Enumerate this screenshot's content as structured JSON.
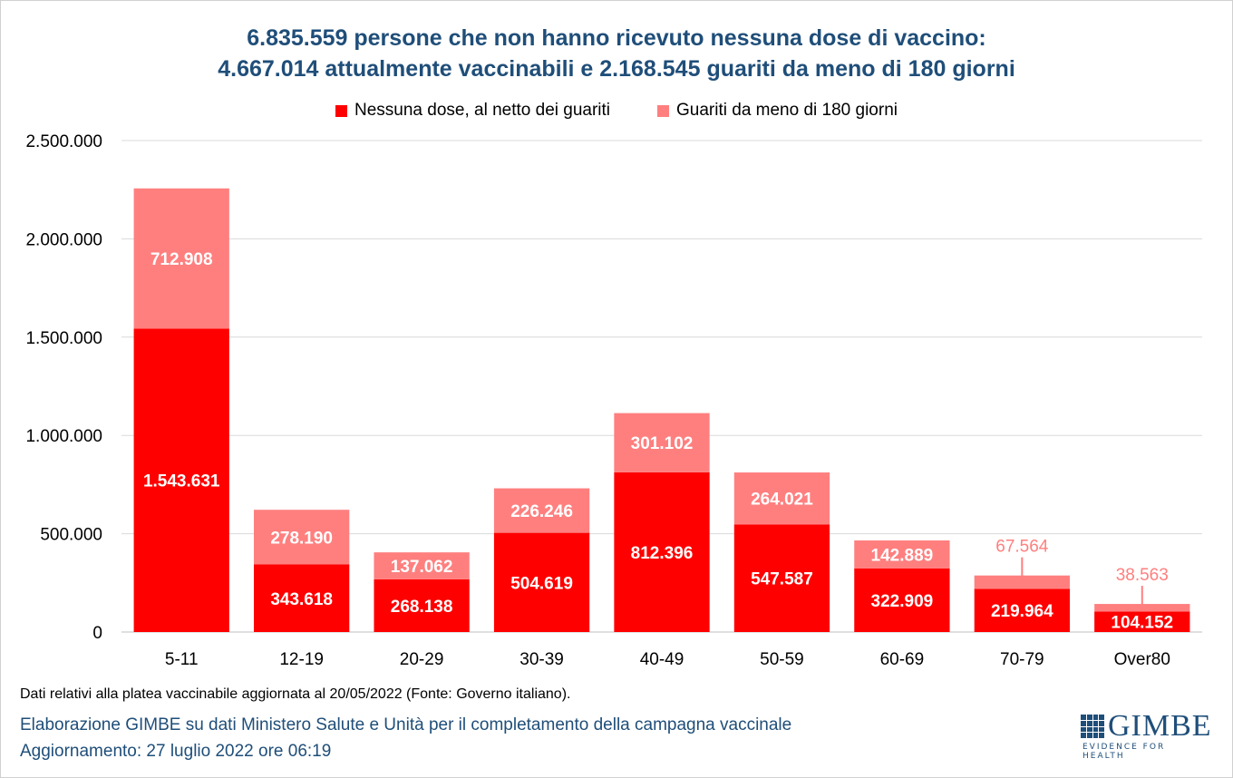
{
  "chart_data": {
    "type": "bar",
    "stacked": true,
    "title": "6.835.559 persone che non hanno ricevuto nessuna dose di vaccino:",
    "subtitle": "4.667.014 attualmente vaccinabili e 2.168.545 guariti da meno di 180 giorni",
    "categories": [
      "5-11",
      "12-19",
      "20-29",
      "30-39",
      "40-49",
      "50-59",
      "60-69",
      "70-79",
      "Over80"
    ],
    "series": [
      {
        "name": "Nessuna dose, al netto dei guariti",
        "color": "#ff0000",
        "values": [
          1543631,
          343618,
          268138,
          504619,
          812396,
          547587,
          322909,
          219964,
          104152
        ],
        "labels": [
          "1.543.631",
          "343.618",
          "268.138",
          "504.619",
          "812.396",
          "547.587",
          "322.909",
          "219.964",
          "104.152"
        ]
      },
      {
        "name": "Guariti da meno di 180 giorni",
        "color": "#ff7f7f",
        "values": [
          712908,
          278190,
          137062,
          226246,
          301102,
          264021,
          142889,
          67564,
          38563
        ],
        "labels": [
          "712.908",
          "278.190",
          "137.062",
          "226.246",
          "301.102",
          "264.021",
          "142.889",
          "67.564",
          "38.563"
        ]
      }
    ],
    "ylim": [
      0,
      2500000
    ],
    "yticks": [
      0,
      500000,
      1000000,
      1500000,
      2000000,
      2500000
    ],
    "ytick_labels": [
      "0",
      "500.000",
      "1.000.000",
      "1.500.000",
      "2.000.000",
      "2.500.000"
    ],
    "xlabel": "",
    "ylabel": "",
    "grid": true,
    "legend_position": "top-center"
  },
  "footer": {
    "note": "Dati relativi alla platea vaccinabile aggiornata al 20/05/2022 (Fonte: Governo italiano).",
    "credit": "Elaborazione GIMBE su dati Ministero Salute e Unità per il completamento della campagna vaccinale",
    "updated": "Aggiornamento: 27 luglio 2022 ore 06:19"
  },
  "logo": {
    "name": "GIMBE",
    "tagline": "EVIDENCE FOR HEALTH"
  }
}
